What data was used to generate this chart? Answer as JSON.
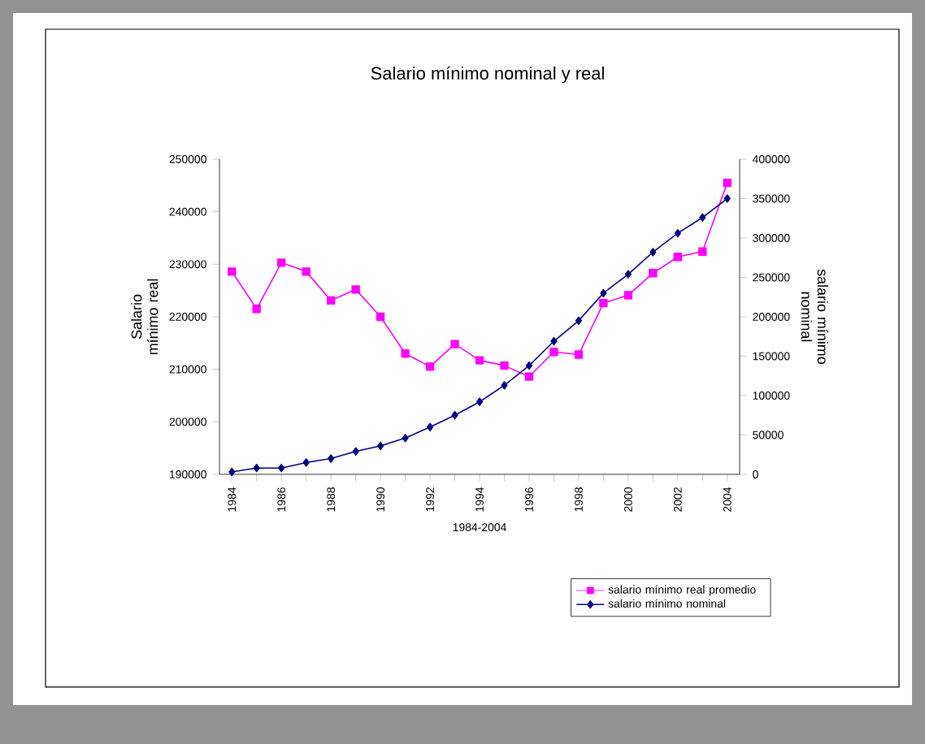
{
  "chart_data": {
    "type": "line",
    "title": "Salario mínimo nominal y real",
    "xlabel": "1984-2004",
    "ylabel": "Salario mínimo real",
    "y2label": "salario mínimo nominal",
    "categories": [
      "1984",
      null,
      "1986",
      null,
      "1988",
      null,
      "1990",
      null,
      "1992",
      null,
      "1994",
      null,
      "1996",
      null,
      "1998",
      null,
      "2000",
      null,
      "2002",
      null,
      "2004"
    ],
    "ylim": [
      190000,
      250000
    ],
    "yticks": [
      190000,
      200000,
      210000,
      220000,
      230000,
      240000,
      250000
    ],
    "y2lim": [
      0,
      400000
    ],
    "y2ticks": [
      0,
      50000,
      100000,
      150000,
      200000,
      250000,
      300000,
      350000,
      400000
    ],
    "legend": "bottom right",
    "grid": false,
    "series": [
      {
        "name": "salario mínimo real promedio",
        "color": "#ff00ff",
        "marker": "square",
        "values": [
          228600,
          221500,
          230300,
          228600,
          223100,
          225200,
          220000,
          213000,
          210500,
          214800,
          211700,
          210700,
          208600,
          213300,
          212800,
          222600,
          224100,
          228300,
          231400,
          232400,
          245500
        ]
      },
      {
        "name": "salario mínimo nominal",
        "color": "#000080",
        "marker": "diamond",
        "axis": "y2",
        "values": [
          3000,
          8000,
          8000,
          15000,
          20000,
          29000,
          36000,
          46000,
          60000,
          75000,
          92000,
          113000,
          138000,
          169000,
          195000,
          230000,
          254000,
          282000,
          306000,
          326000,
          350000
        ]
      }
    ]
  }
}
